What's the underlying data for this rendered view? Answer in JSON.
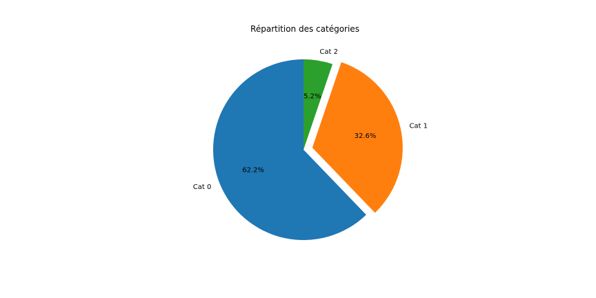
{
  "chart_data": {
    "type": "pie",
    "title": "Répartition des catégories",
    "labels": [
      "Cat 0",
      "Cat 1",
      "Cat 2"
    ],
    "values": [
      62.2,
      32.6,
      5.2
    ],
    "percent_labels": [
      "62.2%",
      "32.6%",
      "5.2%"
    ],
    "colors": [
      "#1f77b4",
      "#ff7f0e",
      "#2ca02c"
    ],
    "exploded": [
      0,
      1,
      0
    ],
    "start_angle": 90,
    "direction": "counterclockwise",
    "legend": "none"
  }
}
